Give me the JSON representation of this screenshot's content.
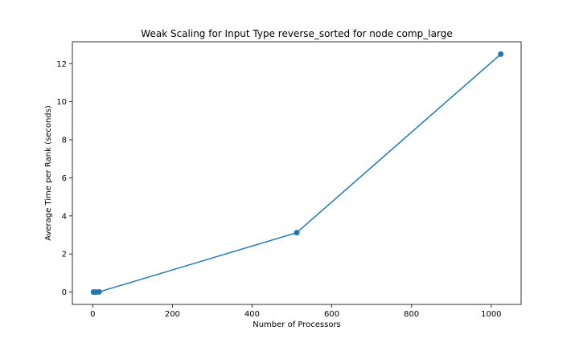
{
  "chart_data": {
    "type": "line",
    "title": "Weak Scaling for Input Type reverse_sorted for node comp_large",
    "xlabel": "Number of Processors",
    "ylabel": "Average Time per Rank (seconds)",
    "xlim": [
      -51,
      1075
    ],
    "ylim": [
      -0.65,
      13.15
    ],
    "xticks": [
      0,
      200,
      400,
      600,
      800,
      1000
    ],
    "yticks": [
      0,
      2,
      4,
      6,
      8,
      10,
      12
    ],
    "grid": false,
    "series": [
      {
        "color": "#1f77b4",
        "marker": "circle",
        "x": [
          2,
          4,
          8,
          16,
          512,
          1024
        ],
        "y": [
          0.0,
          0.0,
          0.0,
          0.01,
          3.12,
          12.5
        ]
      }
    ]
  }
}
